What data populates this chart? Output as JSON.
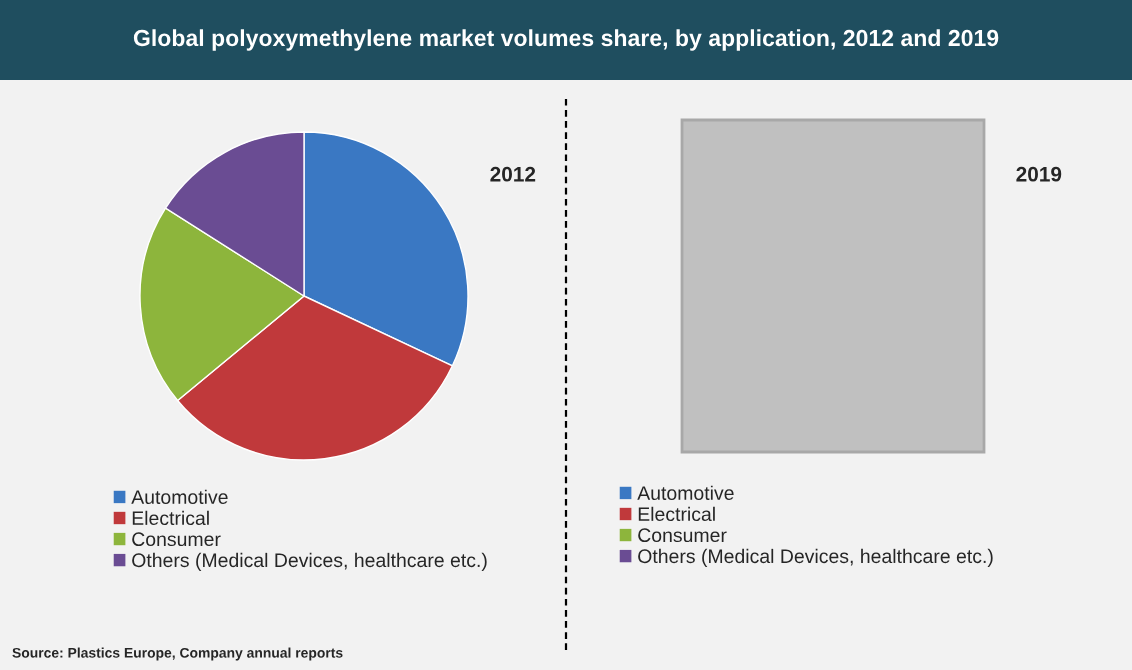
{
  "chart_data": [
    {
      "type": "pie",
      "title": "Global polyoxymethylene market volumes share, by application, 2012 and 2019",
      "subtitle": "2012",
      "categories": [
        "Automotive",
        "Electrical",
        "Consumer",
        "Others (Medical Devices, healthcare etc.)"
      ],
      "values": [
        32,
        32,
        20,
        16
      ],
      "colors": [
        "#3a78c3",
        "#c0393b",
        "#8db53c",
        "#6a4c93"
      ],
      "legend": "bottom",
      "annotations": [
        "Source: Plastics Europe, Company annual reports"
      ]
    },
    {
      "type": "other",
      "subtitle": "2019",
      "categories": [
        "Automotive",
        "Electrical",
        "Consumer",
        "Others (Medical Devices, healthcare etc.)"
      ],
      "colors": [
        "#3a78c3",
        "#c0393b",
        "#8db53c",
        "#6a4c93"
      ]
    }
  ]
}
